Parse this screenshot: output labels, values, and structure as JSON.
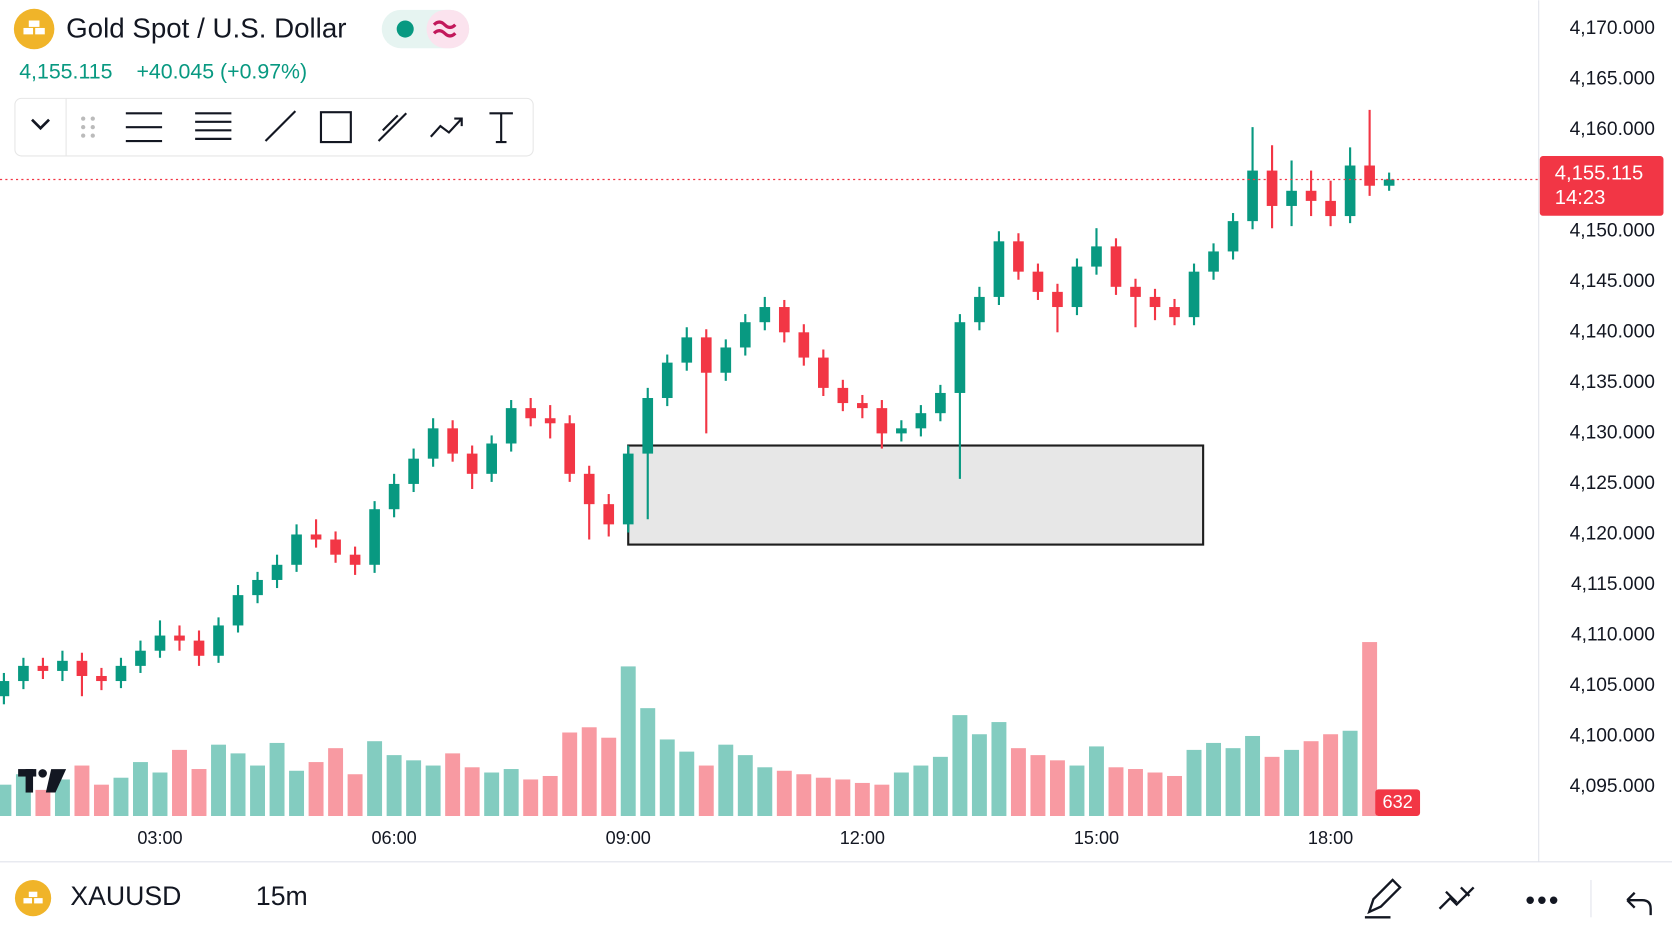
{
  "header": {
    "title": "Gold Spot / U.S. Dollar",
    "price": "4,155.115",
    "change": "+40.045 (+0.97%)"
  },
  "chart_data": {
    "type": "candlestick",
    "x": [
      60,
      75,
      90,
      105,
      120,
      135,
      150,
      165,
      180,
      195,
      210,
      225,
      240,
      255,
      270,
      285,
      300,
      315,
      330,
      345,
      360,
      375,
      390,
      405,
      420,
      435,
      450,
      465,
      480,
      495,
      510,
      525,
      540,
      555,
      570,
      585,
      600,
      615,
      630,
      645,
      660,
      675,
      690,
      705,
      720,
      735,
      750,
      765,
      780,
      795,
      810,
      825,
      840,
      855,
      870,
      885,
      900,
      915,
      930,
      945,
      960,
      975,
      990,
      1005,
      1020,
      1035,
      1050,
      1065,
      1080,
      1095,
      1110,
      1125
    ],
    "open": [
      4104,
      4105.5,
      4107,
      4106.5,
      4107.5,
      4106,
      4105.5,
      4107,
      4108.5,
      4110,
      4109.5,
      4108,
      4111,
      4114,
      4115.5,
      4117,
      4120,
      4119.5,
      4118,
      4117,
      4122.5,
      4125,
      4127.5,
      4130.5,
      4128,
      4126,
      4129,
      4132.5,
      4131.5,
      4131,
      4126,
      4123,
      4121,
      4128,
      4133.5,
      4137,
      4139.5,
      4136,
      4138.5,
      4141,
      4142.5,
      4140,
      4137.5,
      4134.5,
      4133,
      4132.5,
      4130,
      4130.5,
      4132,
      4134,
      4141,
      4143.5,
      4149,
      4146,
      4144,
      4142.5,
      4146.5,
      4148.5,
      4144.5,
      4143.5,
      4142.5,
      4141.5,
      4146,
      4148,
      4151,
      4156,
      4152.5,
      4154,
      4153,
      4151.5,
      4156.5,
      4154.5
    ],
    "high": [
      4106.3,
      4107.8,
      4107.8,
      4108.5,
      4108.3,
      4106.8,
      4107.8,
      4109.5,
      4111.5,
      4111,
      4110.5,
      4111.8,
      4115,
      4116.3,
      4118,
      4121,
      4121.5,
      4120.3,
      4118.8,
      4123.3,
      4126,
      4128.5,
      4131.5,
      4131.3,
      4128.8,
      4129.8,
      4133.3,
      4133.5,
      4132.8,
      4131.8,
      4126.8,
      4124,
      4128.8,
      4134.5,
      4137.8,
      4140.5,
      4140.3,
      4139.3,
      4141.8,
      4143.5,
      4143.2,
      4140.8,
      4138.3,
      4135.3,
      4133.8,
      4133.3,
      4131.3,
      4132.8,
      4134.8,
      4141.8,
      4144.5,
      4150,
      4149.8,
      4146.8,
      4144.8,
      4147.3,
      4150.3,
      4149.3,
      4145.3,
      4144.3,
      4143.3,
      4146.8,
      4148.8,
      4151.8,
      4160.3,
      4158.5,
      4157,
      4156,
      4155,
      4158.3,
      4162,
      4155.8
    ],
    "low": [
      4103.2,
      4104.7,
      4105.7,
      4105.5,
      4104,
      4104.6,
      4104.8,
      4106.3,
      4107.8,
      4108.5,
      4107,
      4107.3,
      4110.3,
      4113.2,
      4114.7,
      4116.3,
      4118.7,
      4117.2,
      4116,
      4116.2,
      4121.7,
      4124.2,
      4126.7,
      4127.2,
      4124.5,
      4125.2,
      4128.2,
      4130.7,
      4129.5,
      4125.2,
      4119.5,
      4119.8,
      4120.2,
      4121.5,
      4132.7,
      4136.2,
      4130,
      4135.2,
      4137.7,
      4140.2,
      4139,
      4136.7,
      4133.7,
      4132.2,
      4131.5,
      4128.5,
      4129.2,
      4129.7,
      4131.2,
      4125.5,
      4140.2,
      4142.7,
      4145.2,
      4143.2,
      4140,
      4141.7,
      4145.7,
      4143.7,
      4140.5,
      4141.2,
      4140.7,
      4140.7,
      4145.2,
      4147.2,
      4150.2,
      4150.3,
      4150.5,
      4151.5,
      4150.5,
      4150.8,
      4153.5,
      4154
    ],
    "close": [
      4105.5,
      4107,
      4106.5,
      4107.5,
      4106,
      4105.5,
      4107,
      4108.5,
      4110,
      4109.5,
      4108,
      4111,
      4114,
      4115.5,
      4117,
      4120,
      4119.5,
      4118,
      4117,
      4122.5,
      4125,
      4127.5,
      4130.5,
      4128,
      4126,
      4129,
      4132.5,
      4131.5,
      4131,
      4126,
      4123,
      4121,
      4128,
      4133.5,
      4137,
      4139.5,
      4136,
      4138.5,
      4141,
      4142.5,
      4140,
      4137.5,
      4134.5,
      4133,
      4132.5,
      4130,
      4130.5,
      4132,
      4134,
      4141,
      4143.5,
      4149,
      4146,
      4144,
      4142.5,
      4146.5,
      4148.5,
      4144.5,
      4143.5,
      4142.5,
      4141.5,
      4146,
      4148,
      4151,
      4156,
      4152.5,
      4154,
      4153,
      4151.5,
      4156.5,
      4154.5,
      4155.115
    ],
    "volume": [
      1800,
      2400,
      1500,
      2100,
      2900,
      1800,
      2200,
      3100,
      2500,
      3800,
      2700,
      4100,
      3600,
      2900,
      4200,
      2600,
      3100,
      3900,
      2400,
      4300,
      3500,
      3200,
      2900,
      3600,
      2800,
      2500,
      2700,
      2100,
      2300,
      4800,
      5100,
      4500,
      8600,
      6200,
      4400,
      3700,
      2900,
      4100,
      3500,
      2800,
      2600,
      2400,
      2200,
      2100,
      1900,
      1800,
      2500,
      2900,
      3400,
      5800,
      4700,
      5400,
      3900,
      3500,
      3200,
      2900,
      4000,
      2800,
      2700,
      2500,
      2300,
      3800,
      4200,
      3900,
      4600,
      3400,
      3800,
      4300,
      4700,
      4900,
      10000,
      632
    ],
    "up_color": "#089981",
    "down_color": "#f23645",
    "xlim": [
      57,
      1240
    ],
    "xticks": [
      {
        "value": 180,
        "label": "03:00"
      },
      {
        "value": 360,
        "label": "06:00"
      },
      {
        "value": 540,
        "label": "09:00"
      },
      {
        "value": 720,
        "label": "12:00"
      },
      {
        "value": 900,
        "label": "15:00"
      },
      {
        "value": 1080,
        "label": "18:00"
      }
    ],
    "ylim": [
      4092.15,
      4172.85
    ],
    "yticks": [
      {
        "value": 4095,
        "label": "4,095.000"
      },
      {
        "value": 4100,
        "label": "4,100.000"
      },
      {
        "value": 4105,
        "label": "4,105.000"
      },
      {
        "value": 4110,
        "label": "4,110.000"
      },
      {
        "value": 4115,
        "label": "4,115.000"
      },
      {
        "value": 4120,
        "label": "4,120.000"
      },
      {
        "value": 4125,
        "label": "4,125.000"
      },
      {
        "value": 4130,
        "label": "4,130.000"
      },
      {
        "value": 4135,
        "label": "4,135.000"
      },
      {
        "value": 4140,
        "label": "4,140.000"
      },
      {
        "value": 4145,
        "label": "4,145.000"
      },
      {
        "value": 4150,
        "label": "4,150.000"
      },
      {
        "value": 4155,
        "label": "4,155.000"
      },
      {
        "value": 4160,
        "label": "4,160.000"
      },
      {
        "value": 4165,
        "label": "4,165.000"
      },
      {
        "value": 4170,
        "label": "4,170.000"
      }
    ],
    "vlim": [
      0,
      46900
    ],
    "last_price_label": "4,155.115",
    "countdown": "14:23",
    "drawings": [
      {
        "type": "rectangle",
        "x": [
          540,
          982
        ],
        "y": [
          4119,
          4128.8
        ]
      }
    ]
  },
  "footer": {
    "symbol": "XAUUSD",
    "interval": "15m"
  }
}
